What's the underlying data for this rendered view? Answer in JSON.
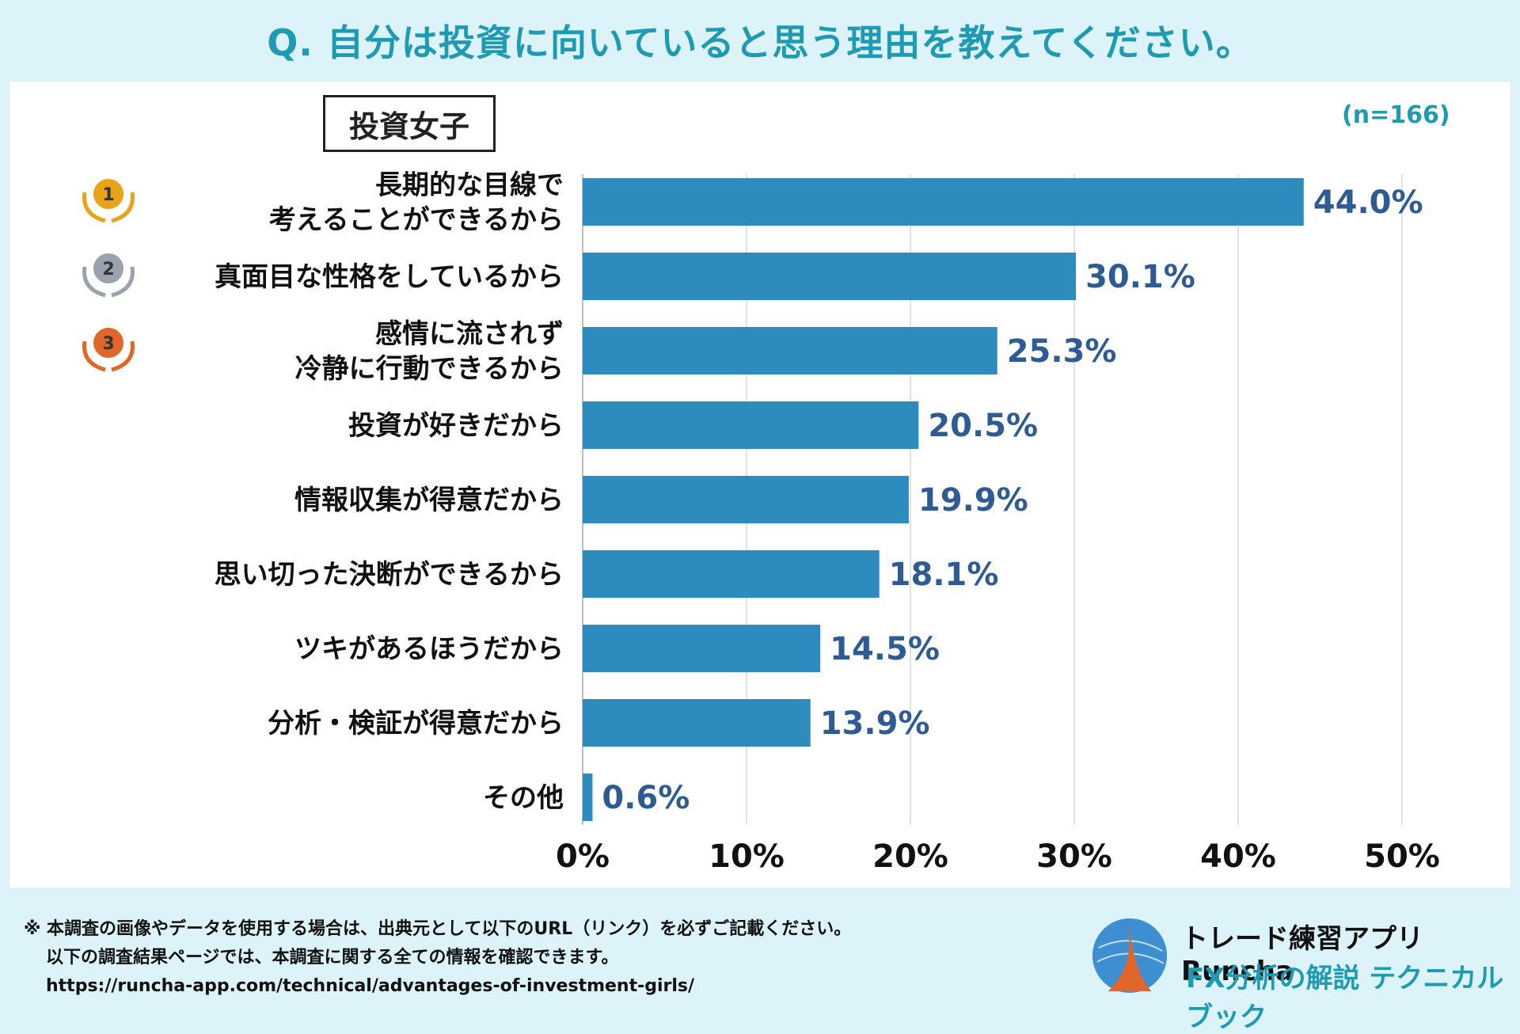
{
  "header": {
    "title": "Q. 自分は投資に向いていると思う理由を教えてください。"
  },
  "group_label": "投資女子",
  "sample_size": "(n=166)",
  "chart_data": {
    "type": "bar",
    "orientation": "horizontal",
    "categories": [
      [
        "長期的な目線で",
        "考えることができるから"
      ],
      [
        "真面目な性格をしているから"
      ],
      [
        "感情に流されず",
        "冷静に行動できるから"
      ],
      [
        "投資が好きだから"
      ],
      [
        "情報収集が得意だから"
      ],
      [
        "思い切った決断ができるから"
      ],
      [
        "ツキがあるほうだから"
      ],
      [
        "分析・検証が得意だから"
      ],
      [
        "その他"
      ]
    ],
    "values": [
      44.0,
      30.1,
      25.3,
      20.5,
      19.9,
      18.1,
      14.5,
      13.9,
      0.6
    ],
    "value_labels": [
      "44.0%",
      "30.1%",
      "25.3%",
      "20.5%",
      "19.9%",
      "18.1%",
      "14.5%",
      "13.9%",
      "0.6%"
    ],
    "x_ticks": [
      "0%",
      "10%",
      "20%",
      "30%",
      "40%",
      "50%"
    ],
    "xlim": [
      0,
      50
    ],
    "grid": true,
    "bar_color": "#2e8bbd",
    "value_label_color": "#2f5b94",
    "rank_medals": [
      {
        "rank": "1",
        "color": "#e8a317"
      },
      {
        "rank": "2",
        "color": "#9aa3ad"
      },
      {
        "rank": "3",
        "color": "#e0662a"
      }
    ]
  },
  "footer": {
    "note_line1": "※ 本調査の画像やデータを使用する場合は、出典元として以下のURL（リンク）を必ずご記載ください。",
    "note_line2": "以下の調査結果ページでは、本調査に関する全ての情報を確認できます。",
    "note_url": "https://runcha-app.com/technical/advantages-of-investment-girls/",
    "brand_app": "トレード練習アプリ Runcha",
    "brand_sub": "FX分析の解説 テクニカルブック"
  }
}
